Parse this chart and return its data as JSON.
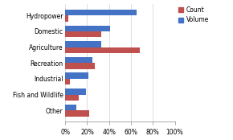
{
  "categories": [
    "Hydropower",
    "Domestic",
    "Agriculture",
    "Recreation",
    "Industrial",
    "Fish and Wildlife",
    "Other"
  ],
  "count": [
    3,
    33,
    68,
    27,
    4,
    12,
    22
  ],
  "volume": [
    65,
    41,
    33,
    25,
    21,
    19,
    10
  ],
  "count_color": "#c0504d",
  "volume_color": "#4472c4",
  "xlim": [
    0,
    100
  ],
  "xtick_labels": [
    "0%",
    "20%",
    "40%",
    "60%",
    "80%",
    "100%"
  ],
  "xtick_values": [
    0,
    20,
    40,
    60,
    80,
    100
  ],
  "legend_labels": [
    "Count",
    "Volume"
  ],
  "bar_height": 0.38,
  "background_color": "#ffffff"
}
